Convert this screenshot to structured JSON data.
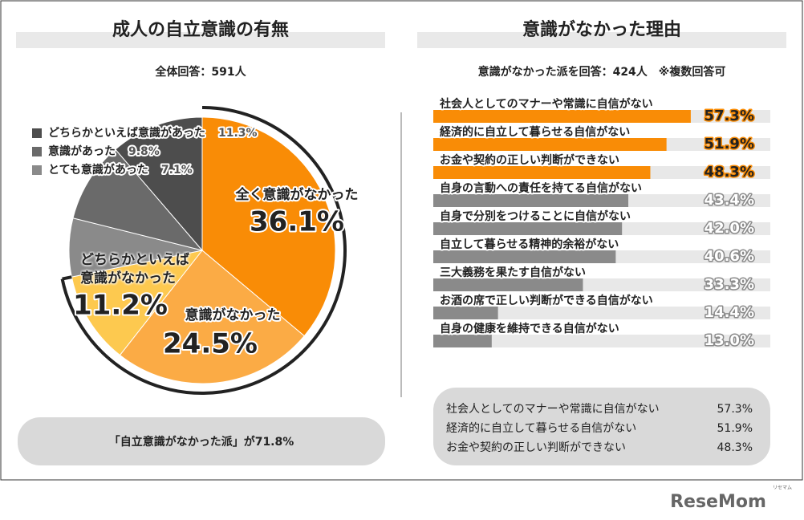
{
  "chart_data": [
    {
      "type": "pie",
      "title": "成人の自立意識の有無",
      "subtitle": "全体回答：591人",
      "categories": [
        "全く意識がなかった",
        "意識がなかった",
        "どちらかといえば意識がなかった",
        "とても意識があった",
        "意識があった",
        "どちらかといえば意識があった"
      ],
      "values": [
        36.1,
        24.5,
        11.2,
        7.1,
        9.8,
        11.3
      ],
      "value_labels": [
        "36.1%",
        "24.5%",
        "11.2%",
        "7.1%",
        "9.8%",
        "11.3%"
      ],
      "colors": [
        "#f98c06",
        "#fbab45",
        "#fdc94f",
        "#8a8a8a",
        "#6a6a6a",
        "#4d4d4d"
      ],
      "annotation": "「自立意識がなかった派」が71.8%"
    },
    {
      "type": "bar",
      "title": "意識がなかった理由",
      "subtitle": "意識がなかった派を回答：424人　※複数回答可",
      "categories": [
        "社会人としてのマナーや常識に自信がない",
        "経済的に自立して暮らせる自信がない",
        "お金や契約の正しい判断ができない",
        "自身の言動への責任を持てる自信がない",
        "自身で分別をつけることに自信がない",
        "自立して暮らせる精神的余裕がない",
        "三大義務を果たす自信がない",
        "お酒の席で正しい判断ができる自信がない",
        "自身の健康を維持できる自信がない"
      ],
      "values": [
        57.3,
        51.9,
        48.3,
        43.4,
        42.0,
        40.6,
        33.3,
        14.4,
        13.0
      ],
      "value_labels": [
        "57.3%",
        "51.9%",
        "48.3%",
        "43.4%",
        "42.0%",
        "40.6%",
        "33.3%",
        "14.4%",
        "13.0%"
      ],
      "colors": [
        "#f98c06",
        "#f98c06",
        "#f98c06",
        "#8a8a8a",
        "#8a8a8a",
        "#8a8a8a",
        "#8a8a8a",
        "#8a8a8a",
        "#8a8a8a"
      ],
      "xlim": [
        0,
        75
      ]
    }
  ],
  "logo": "ReseMom",
  "logo_reading": "リセマム"
}
